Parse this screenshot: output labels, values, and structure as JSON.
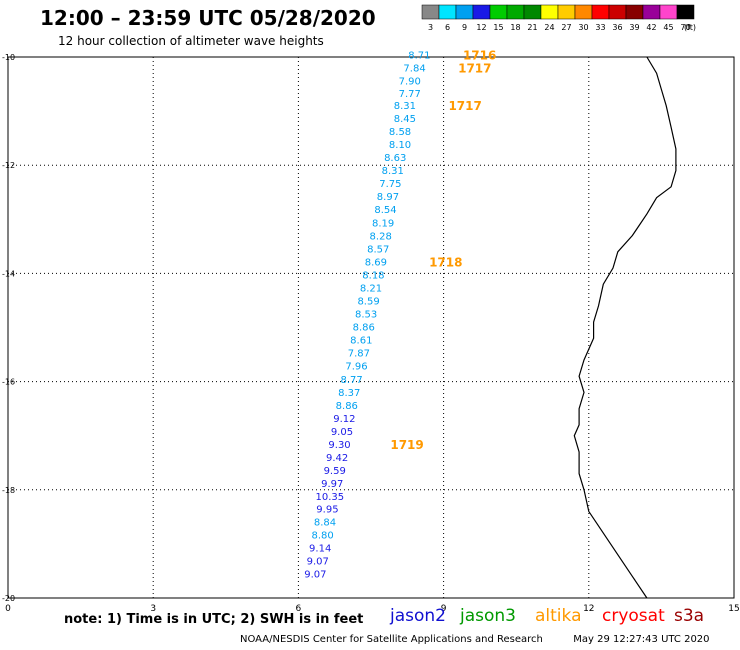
{
  "header": {
    "title": "12:00 – 23:59 UTC 05/28/2020",
    "subtitle": "12 hour collection of altimeter wave heights"
  },
  "legend": {
    "unit": "(ft)",
    "items": [
      {
        "label": "3",
        "color": "#888888"
      },
      {
        "label": "6",
        "color": "#00e5ff"
      },
      {
        "label": "9",
        "color": "#00a0f0"
      },
      {
        "label": "12",
        "color": "#1a1ae6"
      },
      {
        "label": "15",
        "color": "#00cc00"
      },
      {
        "label": "18",
        "color": "#00aa00"
      },
      {
        "label": "21",
        "color": "#008800"
      },
      {
        "label": "24",
        "color": "#ffff00"
      },
      {
        "label": "27",
        "color": "#ffcc00"
      },
      {
        "label": "30",
        "color": "#ff8800"
      },
      {
        "label": "33",
        "color": "#ff0000"
      },
      {
        "label": "36",
        "color": "#cc0000"
      },
      {
        "label": "39",
        "color": "#880000"
      },
      {
        "label": "42",
        "color": "#990099"
      },
      {
        "label": "45",
        "color": "#ff44cc"
      },
      {
        "label": "70",
        "color": "#000000"
      }
    ]
  },
  "axes": {
    "x_ticks": [
      "0",
      "3",
      "6",
      "9",
      "12",
      "15"
    ],
    "y_ticks": [
      "-10",
      "-12",
      "-14",
      "-16",
      "-18",
      "-20"
    ],
    "x_range": [
      0,
      15
    ],
    "y_range": [
      -20,
      -10
    ],
    "grid": "dotted"
  },
  "map_data": {
    "observations": [
      {
        "lon": 8.5,
        "lat": -9.95,
        "value": "8.71",
        "color": "#00a0f0"
      },
      {
        "lon": 8.4,
        "lat": -10.19,
        "value": "7.84",
        "color": "#00a0f0"
      },
      {
        "lon": 8.3,
        "lat": -10.43,
        "value": "7.90",
        "color": "#00a0f0"
      },
      {
        "lon": 8.3,
        "lat": -10.67,
        "value": "7.77",
        "color": "#00a0f0"
      },
      {
        "lon": 8.2,
        "lat": -10.89,
        "value": "8.31",
        "color": "#00a0f0"
      },
      {
        "lon": 8.2,
        "lat": -11.13,
        "value": "8.45",
        "color": "#00a0f0"
      },
      {
        "lon": 8.1,
        "lat": -11.37,
        "value": "8.58",
        "color": "#00a0f0"
      },
      {
        "lon": 8.1,
        "lat": -11.61,
        "value": "8.10",
        "color": "#00a0f0"
      },
      {
        "lon": 8.0,
        "lat": -11.85,
        "value": "8.63",
        "color": "#00a0f0"
      },
      {
        "lon": 7.95,
        "lat": -12.09,
        "value": "8.31",
        "color": "#00a0f0"
      },
      {
        "lon": 7.9,
        "lat": -12.33,
        "value": "7.75",
        "color": "#00a0f0"
      },
      {
        "lon": 7.85,
        "lat": -12.57,
        "value": "8.97",
        "color": "#00a0f0"
      },
      {
        "lon": 7.8,
        "lat": -12.81,
        "value": "8.54",
        "color": "#00a0f0"
      },
      {
        "lon": 7.75,
        "lat": -13.06,
        "value": "8.19",
        "color": "#00a0f0"
      },
      {
        "lon": 7.7,
        "lat": -13.3,
        "value": "8.28",
        "color": "#00a0f0"
      },
      {
        "lon": 7.65,
        "lat": -13.54,
        "value": "8.57",
        "color": "#00a0f0"
      },
      {
        "lon": 7.6,
        "lat": -13.78,
        "value": "8.69",
        "color": "#00a0f0"
      },
      {
        "lon": 7.55,
        "lat": -14.02,
        "value": "8.18",
        "color": "#00a0f0"
      },
      {
        "lon": 7.5,
        "lat": -14.26,
        "value": "8.21",
        "color": "#00a0f0"
      },
      {
        "lon": 7.45,
        "lat": -14.5,
        "value": "8.59",
        "color": "#00a0f0"
      },
      {
        "lon": 7.4,
        "lat": -14.74,
        "value": "8.53",
        "color": "#00a0f0"
      },
      {
        "lon": 7.35,
        "lat": -14.98,
        "value": "8.86",
        "color": "#00a0f0"
      },
      {
        "lon": 7.3,
        "lat": -15.22,
        "value": "8.61",
        "color": "#00a0f0"
      },
      {
        "lon": 7.25,
        "lat": -15.46,
        "value": "7.87",
        "color": "#00a0f0"
      },
      {
        "lon": 7.2,
        "lat": -15.7,
        "value": "7.96",
        "color": "#00a0f0"
      },
      {
        "lon": 7.1,
        "lat": -15.95,
        "value": "8.77",
        "color": "#00a0f0"
      },
      {
        "lon": 7.05,
        "lat": -16.19,
        "value": "8.37",
        "color": "#00a0f0"
      },
      {
        "lon": 7.0,
        "lat": -16.43,
        "value": "8.86",
        "color": "#00a0f0"
      },
      {
        "lon": 6.95,
        "lat": -16.67,
        "value": "9.12",
        "color": "#1a1ae6"
      },
      {
        "lon": 6.9,
        "lat": -16.91,
        "value": "9.05",
        "color": "#1a1ae6"
      },
      {
        "lon": 6.85,
        "lat": -17.15,
        "value": "9.30",
        "color": "#1a1ae6"
      },
      {
        "lon": 6.8,
        "lat": -17.39,
        "value": "9.42",
        "color": "#1a1ae6"
      },
      {
        "lon": 6.75,
        "lat": -17.63,
        "value": "9.59",
        "color": "#1a1ae6"
      },
      {
        "lon": 6.7,
        "lat": -17.87,
        "value": "9.97",
        "color": "#1a1ae6"
      },
      {
        "lon": 6.65,
        "lat": -18.11,
        "value": "10.35",
        "color": "#1a1ae6"
      },
      {
        "lon": 6.6,
        "lat": -18.35,
        "value": "9.95",
        "color": "#1a1ae6"
      },
      {
        "lon": 6.55,
        "lat": -18.59,
        "value": "8.84",
        "color": "#00a0f0"
      },
      {
        "lon": 6.5,
        "lat": -18.83,
        "value": "8.80",
        "color": "#00a0f0"
      },
      {
        "lon": 6.45,
        "lat": -19.07,
        "value": "9.14",
        "color": "#1a1ae6"
      },
      {
        "lon": 6.4,
        "lat": -19.31,
        "value": "9.07",
        "color": "#1a1ae6"
      },
      {
        "lon": 6.35,
        "lat": -19.55,
        "value": "9.07",
        "color": "#1a1ae6"
      }
    ],
    "time_labels": [
      {
        "lon": 9.4,
        "lat": -9.95,
        "text": "1716",
        "color": "#ff9900"
      },
      {
        "lon": 9.3,
        "lat": -10.19,
        "text": "1717",
        "color": "#ff9900"
      },
      {
        "lon": 9.1,
        "lat": -10.89,
        "text": "1717",
        "color": "#ff9900"
      },
      {
        "lon": 8.7,
        "lat": -13.78,
        "text": "1718",
        "color": "#ff9900"
      },
      {
        "lon": 7.9,
        "lat": -17.15,
        "text": "1719",
        "color": "#ff9900"
      }
    ],
    "coastline": [
      [
        13.2,
        -10.0
      ],
      [
        13.4,
        -10.3
      ],
      [
        13.5,
        -10.6
      ],
      [
        13.6,
        -10.9
      ],
      [
        13.7,
        -11.3
      ],
      [
        13.8,
        -11.7
      ],
      [
        13.8,
        -12.1
      ],
      [
        13.7,
        -12.4
      ],
      [
        13.4,
        -12.6
      ],
      [
        13.2,
        -12.9
      ],
      [
        12.9,
        -13.3
      ],
      [
        12.6,
        -13.6
      ],
      [
        12.5,
        -13.9
      ],
      [
        12.3,
        -14.2
      ],
      [
        12.2,
        -14.6
      ],
      [
        12.1,
        -14.9
      ],
      [
        12.1,
        -15.2
      ],
      [
        11.9,
        -15.6
      ],
      [
        11.8,
        -15.9
      ],
      [
        11.9,
        -16.2
      ],
      [
        11.8,
        -16.5
      ],
      [
        11.8,
        -16.8
      ],
      [
        11.7,
        -17.0
      ],
      [
        11.8,
        -17.3
      ],
      [
        11.8,
        -17.7
      ],
      [
        11.9,
        -18.0
      ],
      [
        12.0,
        -18.4
      ],
      [
        12.3,
        -18.8
      ],
      [
        12.6,
        -19.2
      ],
      [
        12.9,
        -19.6
      ],
      [
        13.2,
        -20.0
      ]
    ]
  },
  "missions": [
    {
      "label": "jason2",
      "color": "#1010d0"
    },
    {
      "label": "jason3",
      "color": "#009900"
    },
    {
      "label": "altika",
      "color": "#ff9900"
    },
    {
      "label": "cryosat",
      "color": "#ff0000"
    },
    {
      "label": "s3a",
      "color": "#990000"
    }
  ],
  "footer": {
    "note": "note:  1) Time is in UTC;  2) SWH is in feet",
    "credit": "NOAA/NESDIS Center for Satellite Applications and Research",
    "timestamp": "May 29 12:27:43 UTC 2020"
  }
}
